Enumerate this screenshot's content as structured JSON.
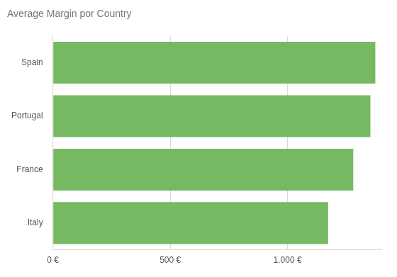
{
  "chart_data": {
    "type": "bar",
    "title": "Average Margin por Country",
    "orientation": "horizontal",
    "categories": [
      "Spain",
      "Portugal",
      "France",
      "Italy"
    ],
    "values": [
      1374,
      1353,
      1280,
      1173
    ],
    "color": "#77b862",
    "xlim": [
      0,
      1400
    ],
    "xticks": [
      {
        "value": 0,
        "label": "0 €"
      },
      {
        "value": 500,
        "label": "500 €"
      },
      {
        "value": 1000,
        "label": "1.000 €"
      }
    ],
    "grid": true
  }
}
